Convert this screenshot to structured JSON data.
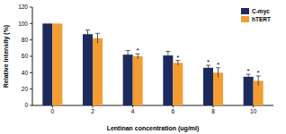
{
  "chart_data": {
    "type": "bar",
    "x_label": "Lentinan concentration (ug/ml)",
    "y_label": "Relative intensity (%)",
    "categories": [
      "0",
      "2",
      "4",
      "6",
      "8",
      "10"
    ],
    "series": [
      {
        "name": "C-myc",
        "color": "#1c2a5e",
        "values": [
          100,
          87,
          62,
          61,
          46,
          35
        ],
        "errors": [
          0,
          5,
          5,
          5,
          3,
          3
        ],
        "significance": [
          null,
          null,
          null,
          null,
          "*",
          "*"
        ]
      },
      {
        "name": "hTERT",
        "color": "#f39c32",
        "values": [
          100,
          82,
          60,
          52,
          40,
          30
        ],
        "errors": [
          0,
          6,
          3,
          3,
          6,
          6
        ],
        "significance": [
          null,
          null,
          "*",
          "*",
          "*",
          "*"
        ]
      }
    ],
    "ylim": [
      0,
      120
    ],
    "yticks": [
      0,
      20,
      40,
      60,
      80,
      100,
      120
    ],
    "legend": "upper right",
    "grid": false
  }
}
